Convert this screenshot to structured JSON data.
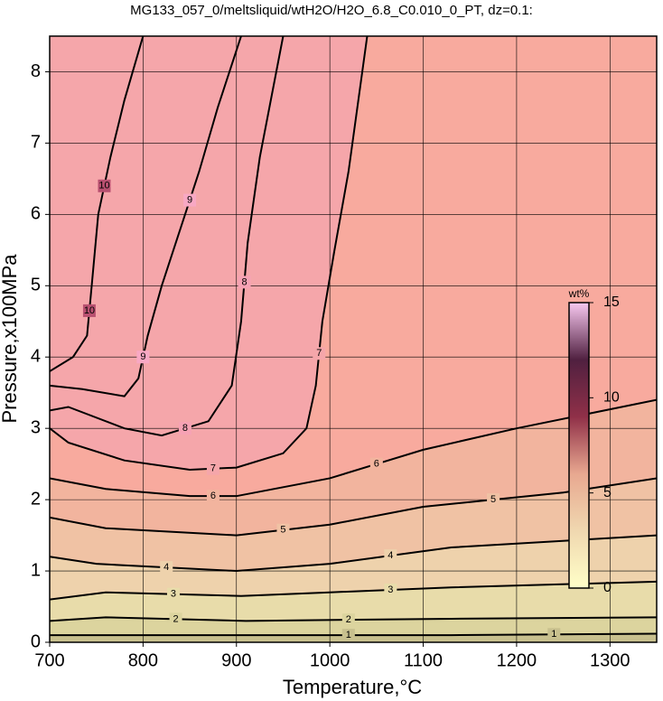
{
  "chart_data": {
    "type": "contour",
    "title": "MG133_057_0/meltsliquid/wtH2O/H2O_6.8_C0.010_0_PT, dz=0.1:",
    "x_label": "Temperature,°C",
    "y_label": "Pressure,x100MPa",
    "xlim": [
      700,
      1350
    ],
    "ylim": [
      0,
      8.5
    ],
    "xticks": [
      700,
      800,
      900,
      1000,
      1100,
      1200,
      1300
    ],
    "yticks": [
      0,
      1,
      2,
      3,
      4,
      5,
      6,
      7,
      8
    ],
    "grid": true,
    "background": "#f8aa9e",
    "line_color": "#000000",
    "colorbar": {
      "label": "wt%",
      "lim": [
        0,
        15
      ],
      "ticks": [
        0,
        5,
        10,
        15
      ],
      "colors": [
        "#ffffc8",
        "#f0d8b0",
        "#e8a890",
        "#903048",
        "#502040",
        "#f8c8f0"
      ]
    },
    "contours": [
      {
        "level": 10,
        "fill": "#b85070",
        "x": [
          700,
          725,
          740,
          745,
          752,
          765,
          780,
          800
        ],
        "y": [
          3.8,
          4.0,
          4.3,
          5.0,
          6.0,
          6.8,
          7.6,
          8.5
        ]
      },
      {
        "level": 9,
        "fill": "#f8a8c4",
        "x": [
          700,
          735,
          780,
          795,
          805,
          820,
          840,
          860,
          880,
          905
        ],
        "y": [
          3.6,
          3.55,
          3.45,
          3.7,
          4.3,
          5.0,
          5.8,
          6.6,
          7.5,
          8.5
        ]
      },
      {
        "level": 8,
        "fill": "#f6a2b4",
        "x": [
          700,
          720,
          780,
          820,
          870,
          895,
          905,
          912,
          925,
          950
        ],
        "y": [
          3.25,
          3.3,
          3.0,
          2.9,
          3.1,
          3.6,
          4.5,
          5.6,
          6.8,
          8.5
        ]
      },
      {
        "level": 7,
        "fill": "#f5a6aa",
        "x": [
          700,
          720,
          780,
          850,
          900,
          950,
          975,
          985,
          992,
          1005,
          1020,
          1040
        ],
        "y": [
          3.0,
          2.8,
          2.55,
          2.42,
          2.45,
          2.65,
          3.0,
          3.6,
          4.5,
          5.5,
          6.6,
          8.5
        ]
      },
      {
        "level": 6,
        "fill": "#f2b49e",
        "x": [
          700,
          760,
          850,
          900,
          1000,
          1100,
          1200,
          1350
        ],
        "y": [
          2.3,
          2.15,
          2.05,
          2.05,
          2.3,
          2.7,
          3.0,
          3.4
        ]
      },
      {
        "level": 5,
        "fill": "#f0c2a4",
        "x": [
          700,
          760,
          900,
          1000,
          1100,
          1250,
          1350
        ],
        "y": [
          1.75,
          1.6,
          1.5,
          1.65,
          1.9,
          2.1,
          2.3
        ]
      },
      {
        "level": 4,
        "fill": "#eed2ac",
        "x": [
          700,
          750,
          900,
          1000,
          1130,
          1350
        ],
        "y": [
          1.2,
          1.1,
          1.0,
          1.1,
          1.33,
          1.5
        ]
      },
      {
        "level": 3,
        "fill": "#e8dcaa",
        "x": [
          700,
          760,
          905,
          1000,
          1130,
          1350
        ],
        "y": [
          0.6,
          0.7,
          0.65,
          0.7,
          0.77,
          0.85
        ]
      },
      {
        "level": 2,
        "fill": "#dcd49e",
        "x": [
          700,
          760,
          910,
          1130,
          1350
        ],
        "y": [
          0.3,
          0.35,
          0.3,
          0.33,
          0.35
        ]
      },
      {
        "level": 1,
        "fill": "#c8c08e",
        "x": [
          700,
          910,
          1130,
          1350
        ],
        "y": [
          0.1,
          0.1,
          0.1,
          0.12
        ]
      }
    ]
  }
}
